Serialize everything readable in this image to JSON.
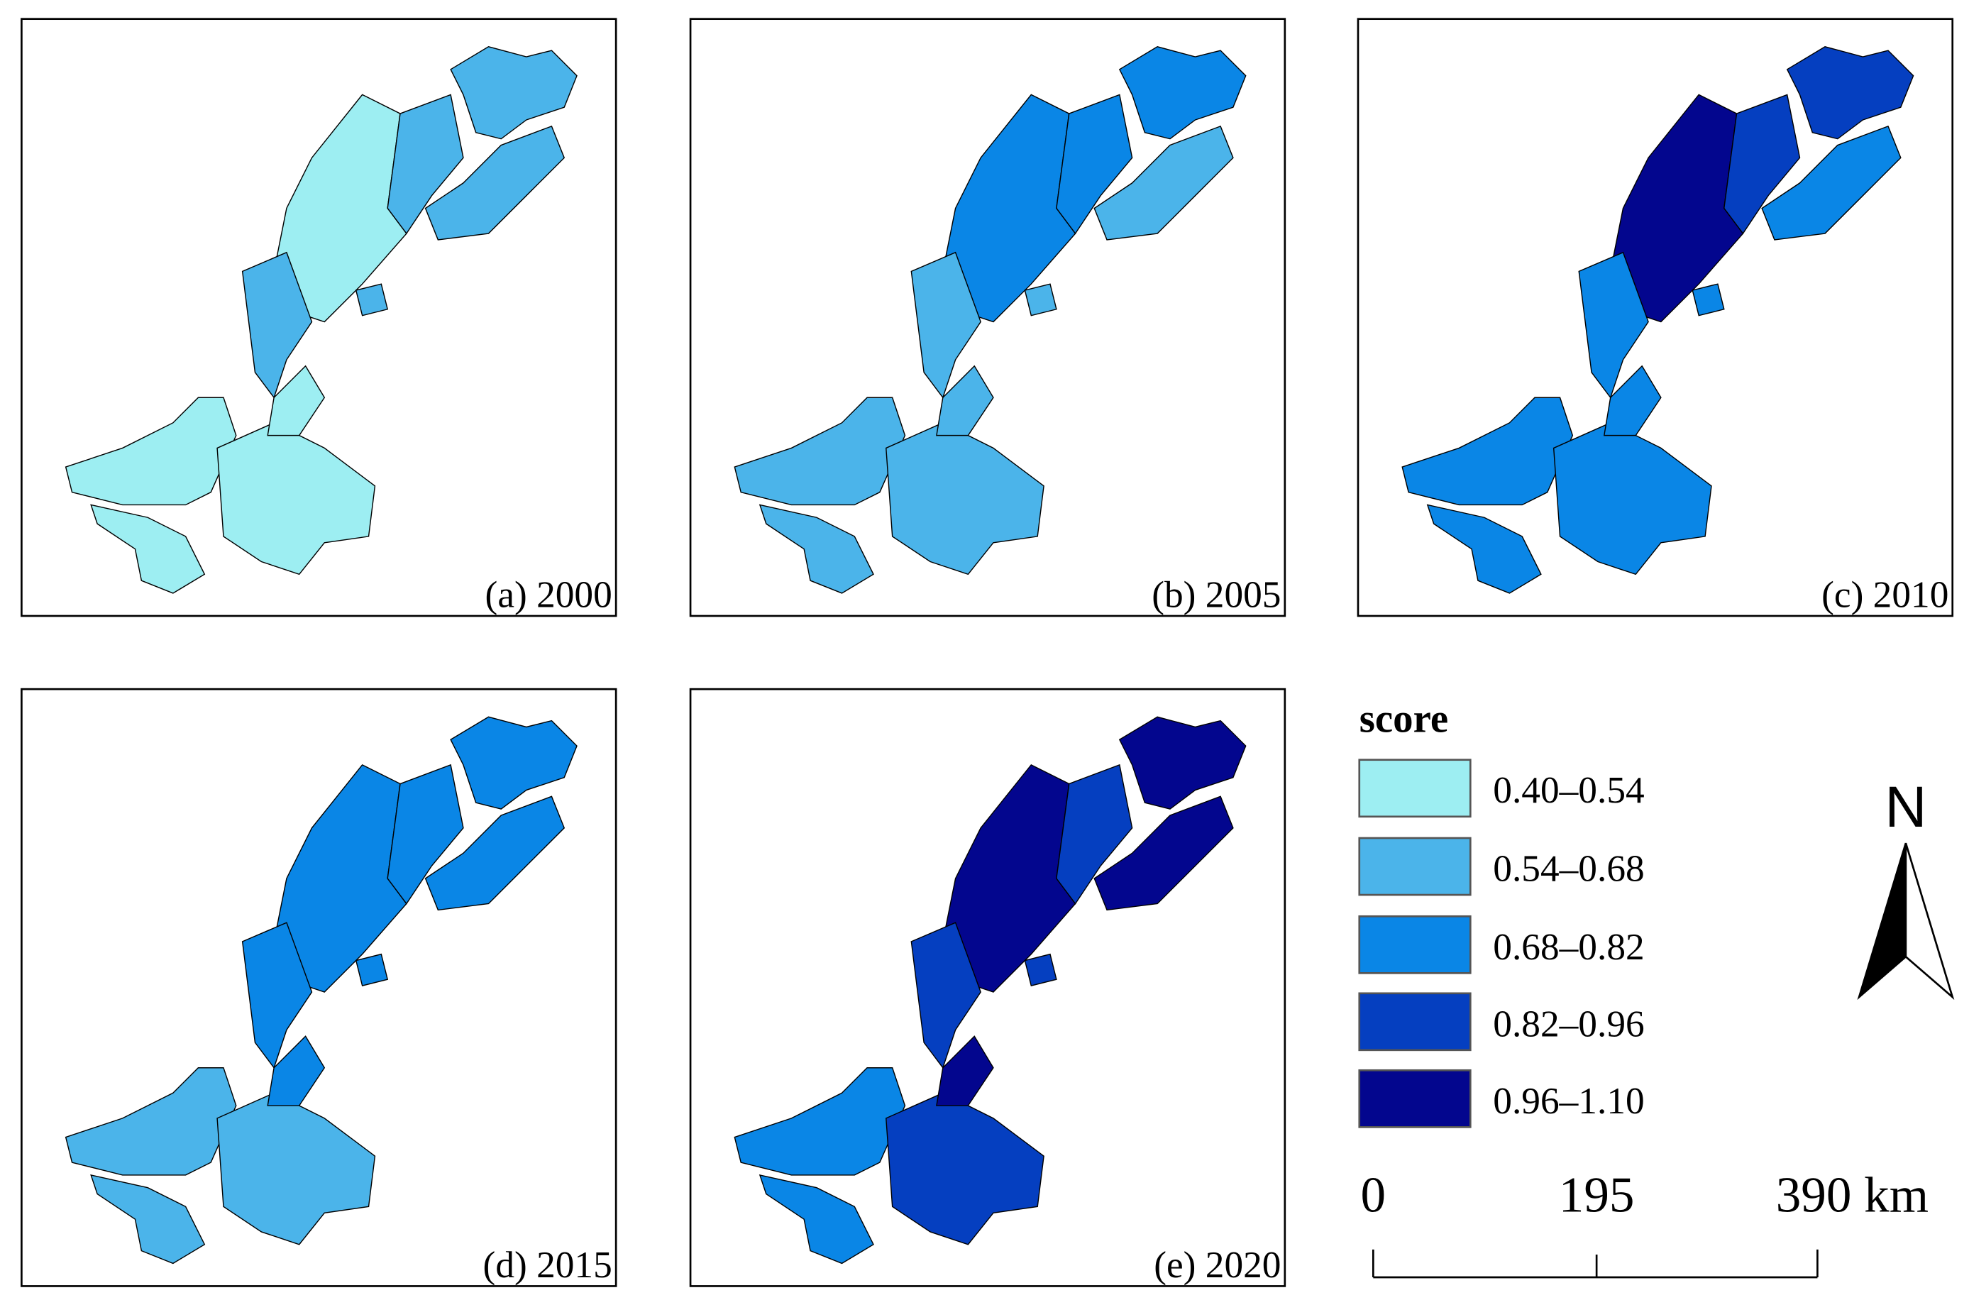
{
  "panels": [
    {
      "label": "(a) 2000",
      "region_colors": [
        "#4bb4ea",
        "#4bb4ea",
        "#9deef2",
        "#4bb4ea",
        "#4bb4ea",
        "#9deef2",
        "#9deef2",
        "#9deef2",
        "#9deef2",
        "#4bb4ea"
      ]
    },
    {
      "label": "(b) 2005",
      "region_colors": [
        "#0a86e6",
        "#4bb4ea",
        "#0a86e6",
        "#0a86e6",
        "#4bb4ea",
        "#4bb4ea",
        "#4bb4ea",
        "#4bb4ea",
        "#4bb4ea",
        "#4bb4ea"
      ]
    },
    {
      "label": "(c) 2010",
      "region_colors": [
        "#053fc0",
        "#0a86e6",
        "#03068e",
        "#053fc0",
        "#0a86e6",
        "#0a86e6",
        "#0a86e6",
        "#0a86e6",
        "#0a86e6",
        "#0a86e6"
      ]
    },
    {
      "label": "(d) 2015",
      "region_colors": [
        "#0a86e6",
        "#0a86e6",
        "#0a86e6",
        "#0a86e6",
        "#0a86e6",
        "#4bb4ea",
        "#4bb4ea",
        "#4bb4ea",
        "#0a86e6",
        "#0a86e6"
      ]
    },
    {
      "label": "(e) 2020",
      "region_colors": [
        "#03068e",
        "#03068e",
        "#03068e",
        "#053fc0",
        "#053fc0",
        "#0a86e6",
        "#0a86e6",
        "#053fc0",
        "#03068e",
        "#053fc0"
      ]
    }
  ],
  "legend": {
    "title": "score",
    "items": [
      {
        "label": "0.40–0.54",
        "color": "#9deef2"
      },
      {
        "label": "0.54–0.68",
        "color": "#4bb4ea"
      },
      {
        "label": "0.68–0.82",
        "color": "#0a86e6"
      },
      {
        "label": "0.82–0.96",
        "color": "#053fc0"
      },
      {
        "label": "0.96–1.10",
        "color": "#03068e"
      }
    ]
  },
  "north_arrow": "N",
  "scale_bar": {
    "labels": [
      "0",
      "195",
      "390 km"
    ]
  }
}
